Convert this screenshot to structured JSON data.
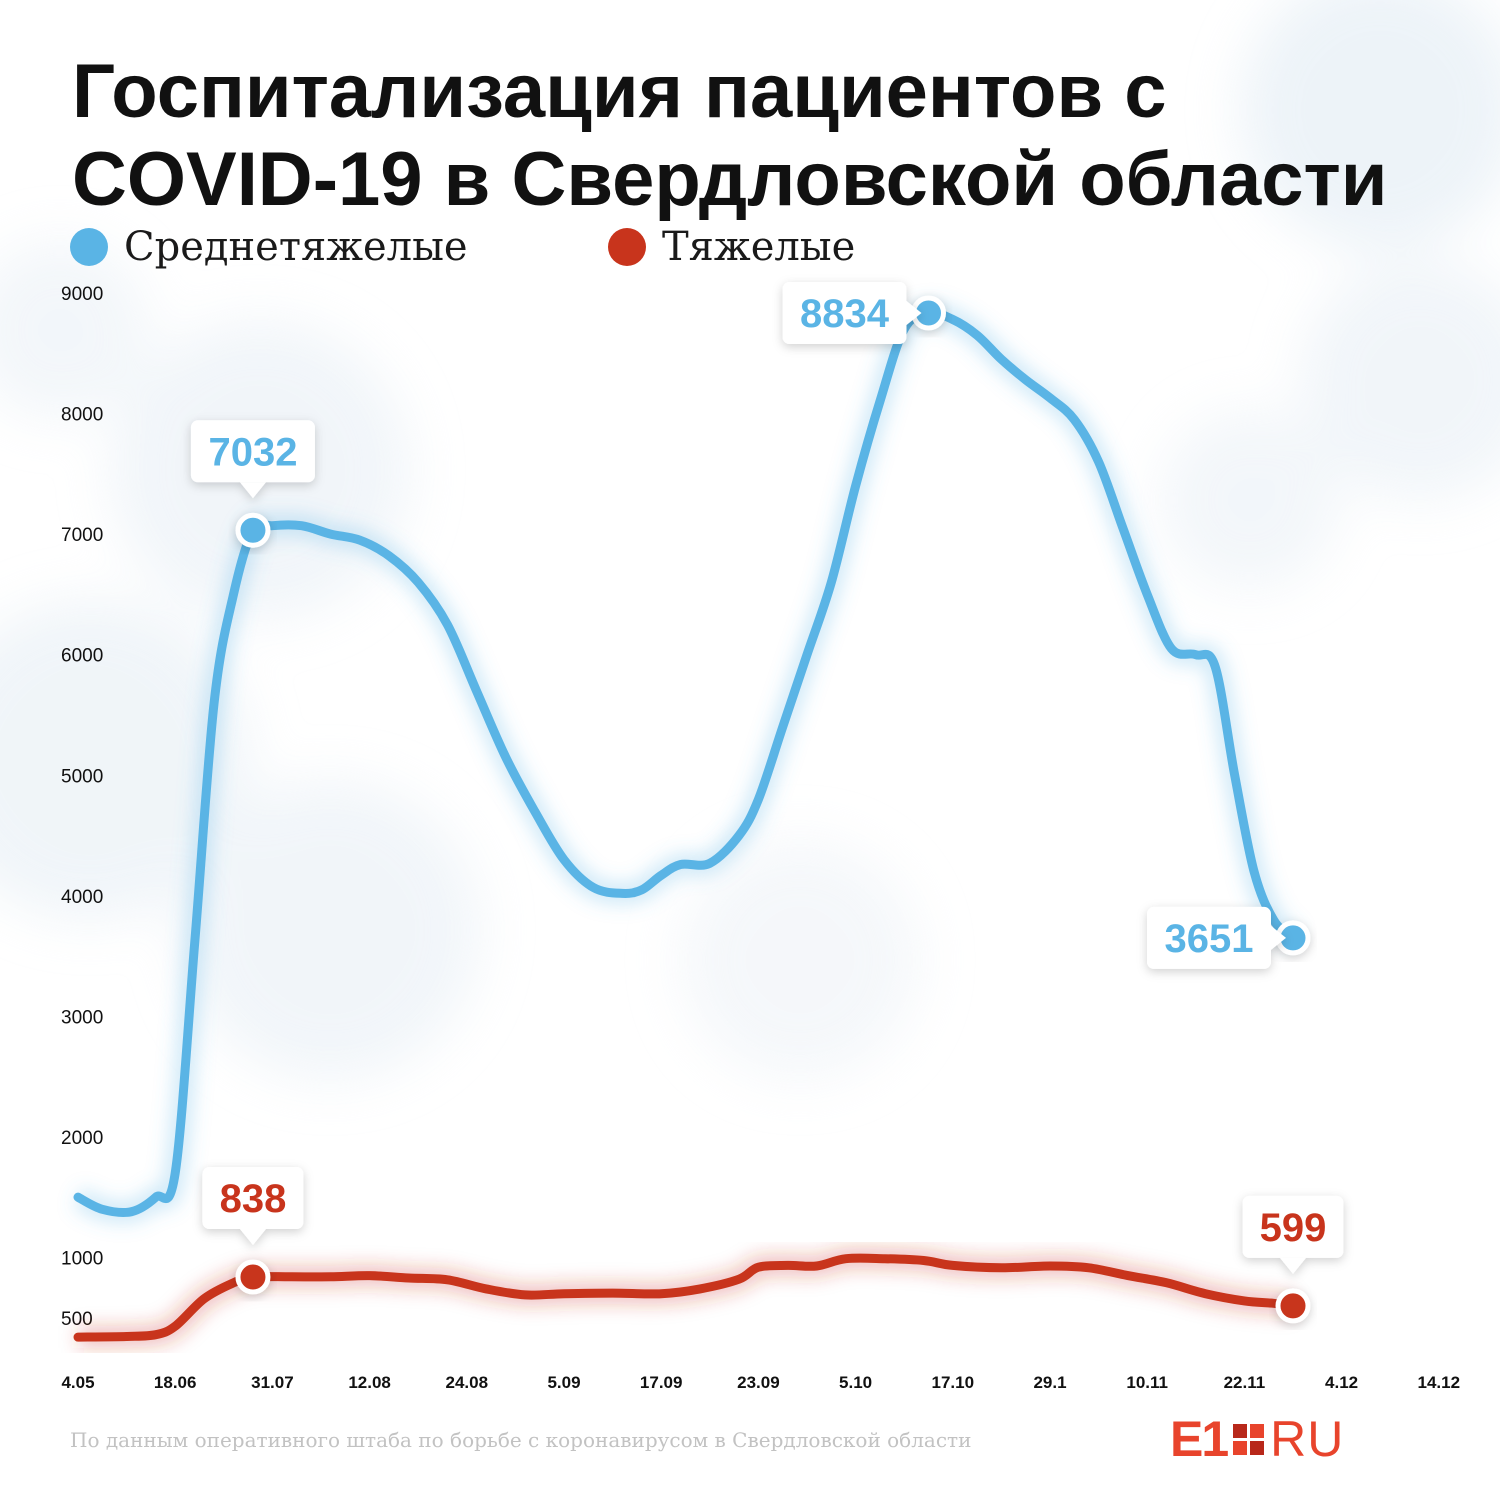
{
  "title_lines": [
    "Госпитализация пациентов с",
    "COVID-19 в Свердловской области"
  ],
  "legend": [
    {
      "label": "Среднетяжелые",
      "color": "#5ab4e5"
    },
    {
      "label": "Тяжелые",
      "color": "#c8341c"
    }
  ],
  "source": "По данным оперативного штаба по борьбе с коронавирусом в Свердловской области",
  "logo": {
    "main": "E1",
    "suffix": "RU"
  },
  "chart_data": {
    "type": "line",
    "x": [
      "4.05",
      "18.06",
      "31.07",
      "12.08",
      "24.08",
      "5.09",
      "17.09",
      "23.09",
      "5.10",
      "17.10",
      "29.1",
      "10.11",
      "22.11",
      "4.12",
      "14.12"
    ],
    "yticks": [
      500,
      1000,
      2000,
      3000,
      4000,
      5000,
      6000,
      7000,
      8000,
      9000
    ],
    "ylim": [
      150,
      9000
    ],
    "series": [
      {
        "name": "Среднетяжелые",
        "color": "#5ab4e5",
        "points": [
          [
            0,
            1500
          ],
          [
            0.25,
            1400
          ],
          [
            0.55,
            1380
          ],
          [
            0.8,
            1500
          ],
          [
            1.0,
            1700
          ],
          [
            1.2,
            3600
          ],
          [
            1.4,
            5600
          ],
          [
            1.6,
            6500
          ],
          [
            1.8,
            7032
          ],
          [
            2.0,
            7070
          ],
          [
            2.3,
            7070
          ],
          [
            2.6,
            7000
          ],
          [
            2.9,
            6950
          ],
          [
            3.2,
            6820
          ],
          [
            3.5,
            6600
          ],
          [
            3.8,
            6250
          ],
          [
            4.1,
            5700
          ],
          [
            4.4,
            5150
          ],
          [
            4.7,
            4700
          ],
          [
            5.0,
            4300
          ],
          [
            5.3,
            4070
          ],
          [
            5.6,
            4020
          ],
          [
            5.8,
            4050
          ],
          [
            6.0,
            4170
          ],
          [
            6.2,
            4260
          ],
          [
            6.5,
            4270
          ],
          [
            6.8,
            4500
          ],
          [
            7.0,
            4800
          ],
          [
            7.25,
            5400
          ],
          [
            7.5,
            6000
          ],
          [
            7.75,
            6600
          ],
          [
            8.0,
            7400
          ],
          [
            8.25,
            8100
          ],
          [
            8.5,
            8700
          ],
          [
            8.75,
            8834
          ],
          [
            9.0,
            8780
          ],
          [
            9.25,
            8650
          ],
          [
            9.5,
            8450
          ],
          [
            9.75,
            8280
          ],
          [
            10.0,
            8130
          ],
          [
            10.25,
            7950
          ],
          [
            10.5,
            7600
          ],
          [
            10.75,
            7050
          ],
          [
            11.0,
            6500
          ],
          [
            11.25,
            6050
          ],
          [
            11.5,
            6000
          ],
          [
            11.7,
            5900
          ],
          [
            11.9,
            5000
          ],
          [
            12.1,
            4200
          ],
          [
            12.3,
            3800
          ],
          [
            12.5,
            3651
          ]
        ],
        "labels": [
          {
            "index": 8,
            "text": "7032"
          },
          {
            "index": 34,
            "text": "8834"
          },
          {
            "index": 50,
            "text": "3651"
          }
        ]
      },
      {
        "name": "Тяжелые",
        "color": "#c8341c",
        "points": [
          [
            0,
            340
          ],
          [
            0.5,
            345
          ],
          [
            0.8,
            360
          ],
          [
            1.0,
            430
          ],
          [
            1.3,
            660
          ],
          [
            1.6,
            790
          ],
          [
            1.8,
            838
          ],
          [
            2.2,
            840
          ],
          [
            2.6,
            840
          ],
          [
            3.0,
            850
          ],
          [
            3.4,
            830
          ],
          [
            3.8,
            815
          ],
          [
            4.2,
            740
          ],
          [
            4.6,
            690
          ],
          [
            5.0,
            700
          ],
          [
            5.5,
            705
          ],
          [
            6.0,
            700
          ],
          [
            6.4,
            740
          ],
          [
            6.8,
            820
          ],
          [
            7.0,
            920
          ],
          [
            7.3,
            935
          ],
          [
            7.6,
            930
          ],
          [
            7.9,
            990
          ],
          [
            8.3,
            990
          ],
          [
            8.7,
            975
          ],
          [
            9.0,
            935
          ],
          [
            9.5,
            915
          ],
          [
            10.0,
            930
          ],
          [
            10.4,
            915
          ],
          [
            10.8,
            850
          ],
          [
            11.2,
            790
          ],
          [
            11.6,
            700
          ],
          [
            12.0,
            640
          ],
          [
            12.3,
            620
          ],
          [
            12.5,
            599
          ]
        ],
        "labels": [
          {
            "index": 6,
            "text": "838"
          },
          {
            "index": 34,
            "text": "599"
          }
        ]
      }
    ]
  }
}
